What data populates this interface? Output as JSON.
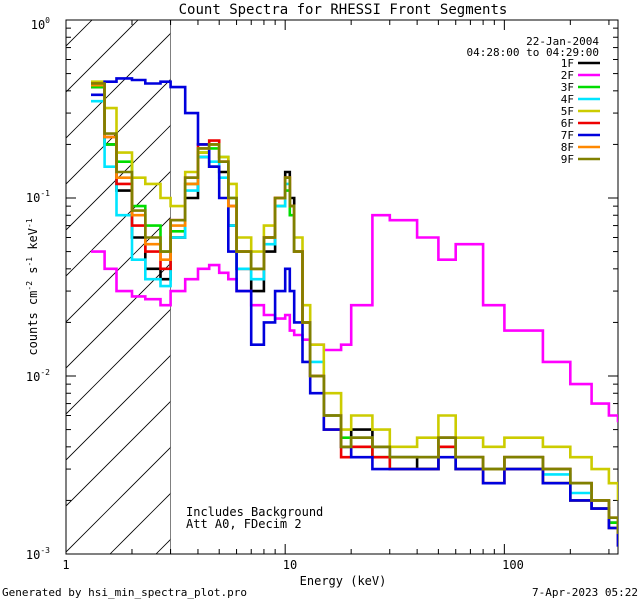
{
  "chart_data": {
    "type": "line",
    "step": true,
    "title": "Count Spectra for RHESSI Front Segments",
    "xlabel": "Energy (keV)",
    "ylabel_parts": {
      "base": "counts cm",
      "exp1": "-2",
      "mid1": " s",
      "exp2": "-1",
      "mid2": " keV",
      "exp3": "-1"
    },
    "xscale": "log",
    "yscale": "log",
    "xlim": [
      1,
      330
    ],
    "ylim": [
      0.001,
      1
    ],
    "x_tick_labels": [
      "1",
      "10",
      "100"
    ],
    "y_tick_labels": [
      {
        "base": "10",
        "exp": "0"
      },
      {
        "base": "10",
        "exp": "-1"
      },
      {
        "base": "10",
        "exp": "-2"
      },
      {
        "base": "10",
        "exp": "-3"
      }
    ],
    "date": "22-Jan-2004",
    "time_range": "04:28:00 to 04:29:00",
    "shaded_region_max_kev": 3,
    "annotations": [
      "Includes Background",
      "Att A0, FDecim 2"
    ],
    "x": [
      1.3,
      1.5,
      1.7,
      2.0,
      2.3,
      2.7,
      3.0,
      3.5,
      4.0,
      4.5,
      5.0,
      5.5,
      6.0,
      7.0,
      8.0,
      9.0,
      10.0,
      10.5,
      11.0,
      12.0,
      13.0,
      15.0,
      18.0,
      20.0,
      25.0,
      30.0,
      40.0,
      50.0,
      60.0,
      80.0,
      100.0,
      150.0,
      200.0,
      250.0,
      300.0,
      330.0
    ],
    "series": [
      {
        "name": "1F",
        "color": "#000000",
        "values": [
          0.42,
          0.2,
          0.11,
          0.06,
          0.04,
          0.035,
          0.06,
          0.1,
          0.17,
          0.15,
          0.14,
          0.07,
          0.04,
          0.03,
          0.05,
          0.1,
          0.14,
          0.1,
          0.05,
          0.02,
          0.01,
          0.006,
          0.004,
          0.005,
          0.004,
          0.0035,
          0.003,
          0.0045,
          0.0035,
          0.003,
          0.0035,
          0.003,
          0.0025,
          0.002,
          0.0015,
          0.0012
        ]
      },
      {
        "name": "2F",
        "color": "#ff00ff",
        "values": [
          0.05,
          0.04,
          0.03,
          0.028,
          0.027,
          0.025,
          0.03,
          0.035,
          0.04,
          0.042,
          0.038,
          0.035,
          0.03,
          0.025,
          0.022,
          0.021,
          0.022,
          0.018,
          0.017,
          0.016,
          0.015,
          0.014,
          0.015,
          0.025,
          0.08,
          0.075,
          0.06,
          0.045,
          0.055,
          0.025,
          0.018,
          0.012,
          0.009,
          0.007,
          0.006,
          0.0055
        ]
      },
      {
        "name": "3F",
        "color": "#00dd00",
        "values": [
          0.42,
          0.2,
          0.16,
          0.09,
          0.07,
          0.05,
          0.065,
          0.12,
          0.18,
          0.19,
          0.17,
          0.1,
          0.05,
          0.04,
          0.06,
          0.09,
          0.11,
          0.08,
          0.05,
          0.02,
          0.01,
          0.006,
          0.0045,
          0.004,
          0.0035,
          0.003,
          0.003,
          0.004,
          0.003,
          0.003,
          0.003,
          0.0025,
          0.002,
          0.0018,
          0.0015,
          0.0012
        ]
      },
      {
        "name": "4F",
        "color": "#00e5ff",
        "values": [
          0.35,
          0.15,
          0.08,
          0.045,
          0.035,
          0.032,
          0.06,
          0.11,
          0.17,
          0.16,
          0.13,
          0.07,
          0.04,
          0.035,
          0.055,
          0.09,
          0.12,
          0.09,
          0.05,
          0.02,
          0.012,
          0.006,
          0.004,
          0.0045,
          0.004,
          0.0035,
          0.0035,
          0.004,
          0.003,
          0.003,
          0.003,
          0.0028,
          0.0022,
          0.0018,
          0.0014,
          0.0011
        ]
      },
      {
        "name": "5F",
        "color": "#cccc00",
        "values": [
          0.45,
          0.32,
          0.18,
          0.13,
          0.12,
          0.1,
          0.09,
          0.14,
          0.18,
          0.2,
          0.17,
          0.12,
          0.06,
          0.05,
          0.07,
          0.1,
          0.13,
          0.09,
          0.06,
          0.025,
          0.015,
          0.008,
          0.005,
          0.006,
          0.005,
          0.004,
          0.0045,
          0.006,
          0.0045,
          0.004,
          0.0045,
          0.004,
          0.0035,
          0.003,
          0.0025,
          0.002
        ]
      },
      {
        "name": "6F",
        "color": "#ee0000",
        "values": [
          0.44,
          0.22,
          0.12,
          0.07,
          0.05,
          0.04,
          0.075,
          0.13,
          0.2,
          0.21,
          0.16,
          0.09,
          0.05,
          0.04,
          0.06,
          0.1,
          0.13,
          0.09,
          0.05,
          0.02,
          0.01,
          0.005,
          0.0035,
          0.004,
          0.0035,
          0.003,
          0.003,
          0.004,
          0.003,
          0.0025,
          0.003,
          0.0025,
          0.002,
          0.0018,
          0.0014,
          0.0011
        ]
      },
      {
        "name": "7F",
        "color": "#0000dd",
        "values": [
          0.38,
          0.45,
          0.47,
          0.46,
          0.44,
          0.45,
          0.42,
          0.3,
          0.2,
          0.15,
          0.1,
          0.05,
          0.03,
          0.015,
          0.02,
          0.03,
          0.04,
          0.03,
          0.02,
          0.012,
          0.008,
          0.005,
          0.004,
          0.0035,
          0.003,
          0.003,
          0.003,
          0.0035,
          0.003,
          0.0025,
          0.003,
          0.0025,
          0.002,
          0.0018,
          0.0014,
          0.0011
        ]
      },
      {
        "name": "8F",
        "color": "#ff8800",
        "values": [
          0.43,
          0.22,
          0.13,
          0.08,
          0.055,
          0.045,
          0.07,
          0.12,
          0.19,
          0.2,
          0.16,
          0.09,
          0.05,
          0.04,
          0.06,
          0.1,
          0.13,
          0.09,
          0.05,
          0.02,
          0.01,
          0.006,
          0.004,
          0.0045,
          0.004,
          0.0035,
          0.0035,
          0.0045,
          0.0035,
          0.003,
          0.0035,
          0.003,
          0.0025,
          0.002,
          0.0016,
          0.0013
        ]
      },
      {
        "name": "9F",
        "color": "#808000",
        "values": [
          0.44,
          0.23,
          0.14,
          0.085,
          0.06,
          0.05,
          0.075,
          0.13,
          0.19,
          0.2,
          0.16,
          0.1,
          0.05,
          0.04,
          0.06,
          0.1,
          0.13,
          0.09,
          0.05,
          0.02,
          0.01,
          0.006,
          0.004,
          0.0045,
          0.004,
          0.0035,
          0.0035,
          0.0045,
          0.0035,
          0.003,
          0.0035,
          0.003,
          0.0025,
          0.002,
          0.0016,
          0.0013
        ]
      }
    ]
  },
  "footer": {
    "generated_by": "Generated by hsi_min_spectra_plot.pro",
    "timestamp": "7-Apr-2023 05:22"
  }
}
